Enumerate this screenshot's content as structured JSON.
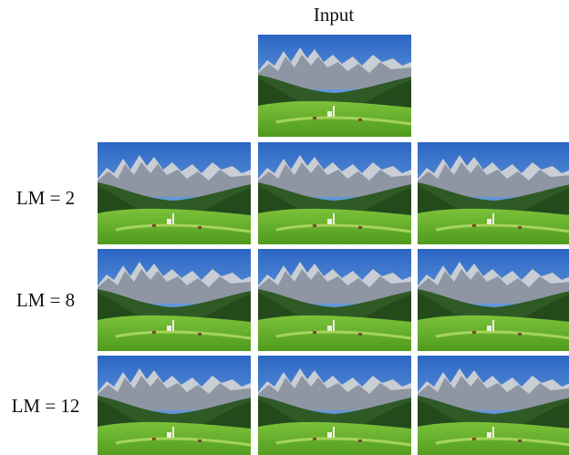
{
  "header": {
    "title": "Input"
  },
  "rows": [
    {
      "label": "LM = 2"
    },
    {
      "label": "LM = 8"
    },
    {
      "label": "LM = 12"
    }
  ]
}
